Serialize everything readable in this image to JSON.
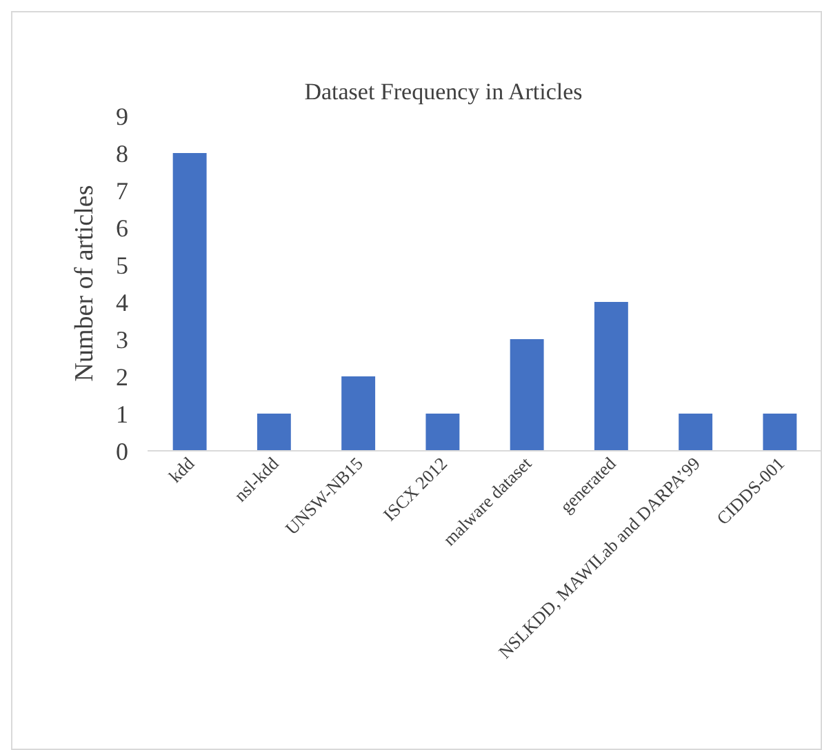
{
  "chart_data": {
    "type": "bar",
    "title": "Dataset Frequency in Articles",
    "ylabel": "Number of articles",
    "categories": [
      "kdd",
      "nsl-kdd",
      "UNSW-NB15",
      "ISCX 2012",
      "malware dataset",
      "generated",
      "NSLKDD, MAWILab and DARPA’99",
      "CIDDS-001"
    ],
    "values": [
      8,
      1,
      2,
      1,
      3,
      4,
      1,
      1
    ],
    "color": "#4472c4",
    "ylim": [
      0,
      9
    ],
    "yticks": [
      0,
      1,
      2,
      3,
      4,
      5,
      6,
      7,
      8,
      9
    ],
    "grid": false
  }
}
